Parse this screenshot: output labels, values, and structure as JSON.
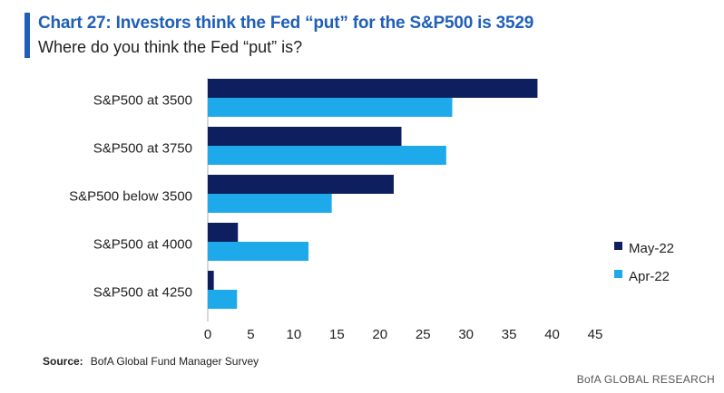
{
  "header": {
    "title": "Chart 27: Investors think the Fed “put”  for the S&P500 is 3529",
    "subtitle": "Where do you think the Fed “put” is?"
  },
  "chart_data": {
    "type": "bar",
    "orientation": "horizontal",
    "title": "Chart 27: Investors think the Fed “put”  for the S&P500 is 3529",
    "subtitle": "Where do you think the Fed “put” is?",
    "categories": [
      "S&P500 at 3500",
      "S&P500 at 3750",
      "S&P500 below 3500",
      "S&P500 at 4000",
      "S&P500 at 4250"
    ],
    "series": [
      {
        "name": "May-22",
        "color": "#0d1f5e",
        "values": [
          38.3,
          22.5,
          21.6,
          3.5,
          0.7
        ]
      },
      {
        "name": "Apr-22",
        "color": "#1eaaea",
        "values": [
          28.4,
          27.7,
          14.4,
          11.7,
          3.4
        ]
      }
    ],
    "xlim": [
      0,
      45
    ],
    "xticks": [
      0,
      5,
      10,
      15,
      20,
      25,
      30,
      35,
      40,
      45
    ],
    "xlabel": "",
    "ylabel": "",
    "grid": false,
    "legend_position": "right"
  },
  "footer": {
    "source_label": "Source:",
    "source_text": "BofA Global Fund Manager Survey",
    "brand": "BofA GLOBAL RESEARCH"
  }
}
